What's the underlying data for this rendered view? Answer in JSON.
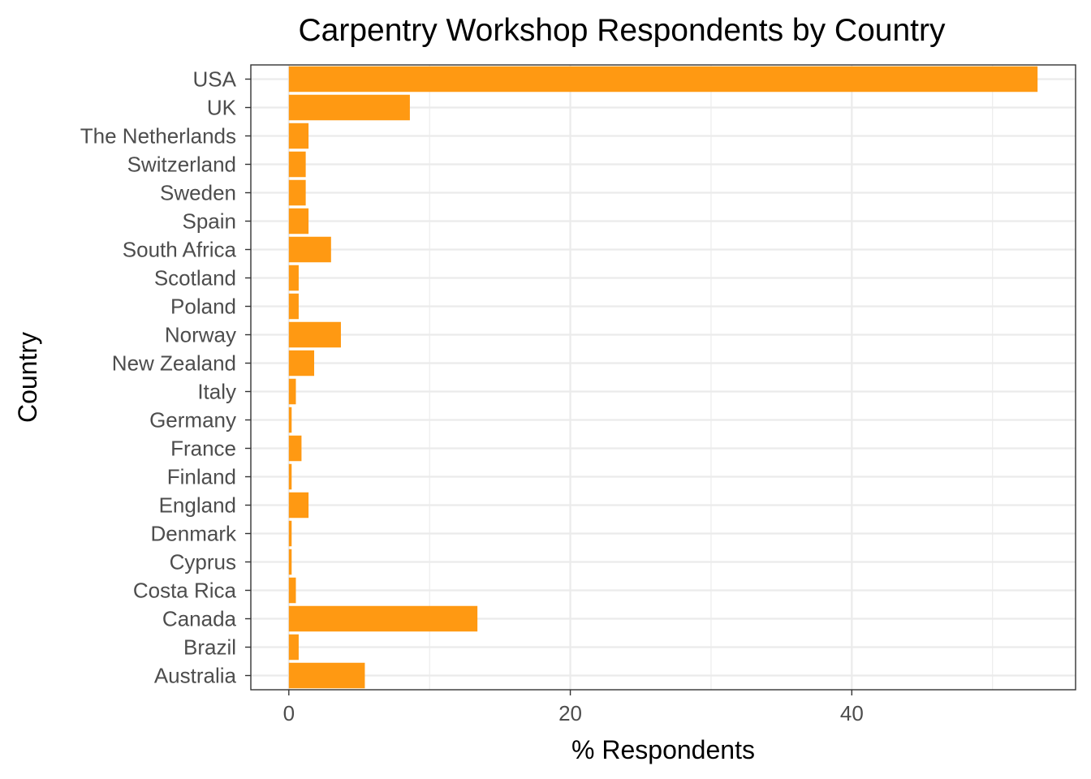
{
  "chart_data": {
    "type": "bar",
    "orientation": "horizontal",
    "title": "Carpentry Workshop Respondents by Country",
    "xlabel": "% Respondents",
    "ylabel": "Country",
    "categories": [
      "Australia",
      "Brazil",
      "Canada",
      "Costa Rica",
      "Cyprus",
      "Denmark",
      "England",
      "Finland",
      "France",
      "Germany",
      "Italy",
      "New Zealand",
      "Norway",
      "Poland",
      "Scotland",
      "South Africa",
      "Spain",
      "Sweden",
      "Switzerland",
      "The Netherlands",
      "UK",
      "USA"
    ],
    "values": [
      5.4,
      0.7,
      13.4,
      0.5,
      0.2,
      0.2,
      1.4,
      0.2,
      0.9,
      0.2,
      0.5,
      1.8,
      3.7,
      0.7,
      0.7,
      3.0,
      1.4,
      1.2,
      1.2,
      1.4,
      8.6,
      53.2
    ],
    "xlim": [
      -2.7,
      55.9
    ],
    "x_ticks": [
      0,
      20,
      40
    ],
    "x_tick_labels": [
      "0",
      "20",
      "40"
    ],
    "grid": true,
    "legend": "none",
    "bar_color": "#FF9912"
  }
}
